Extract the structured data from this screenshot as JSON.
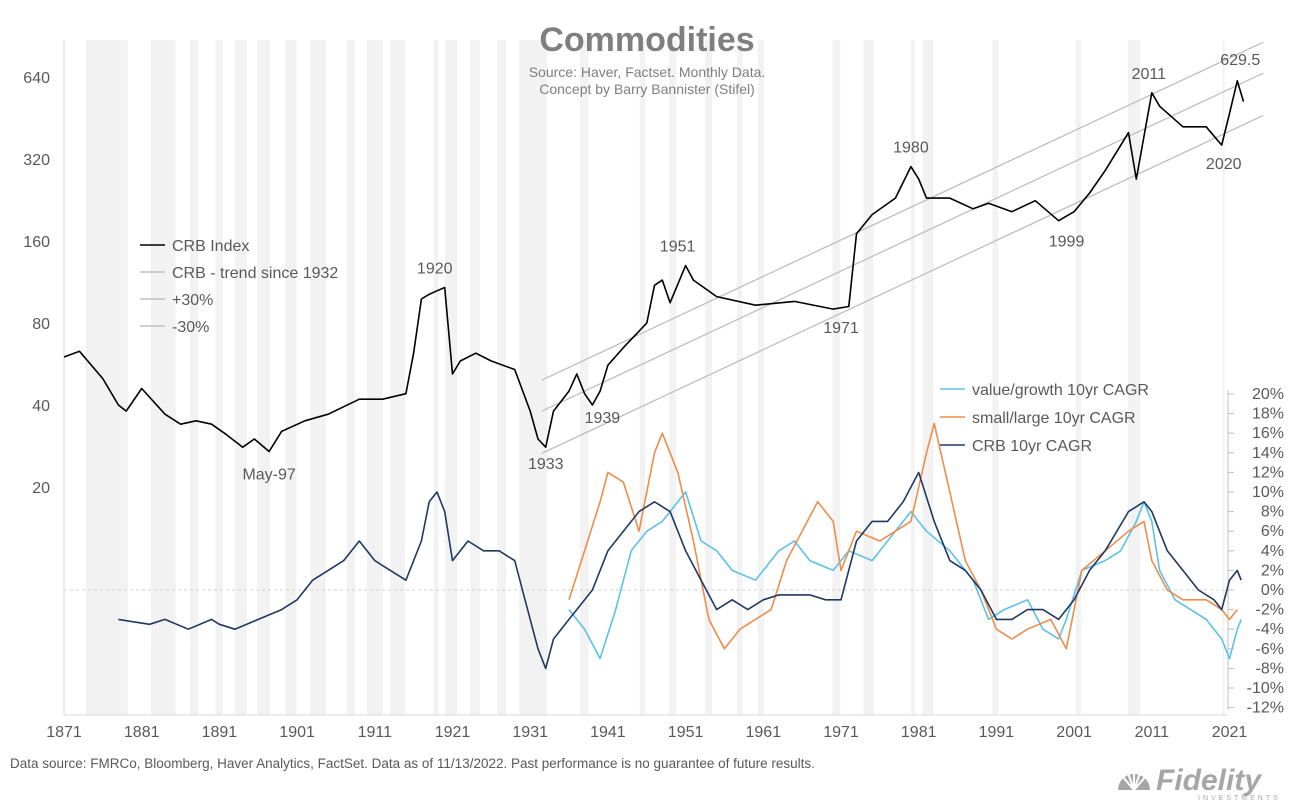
{
  "chart_data": {
    "type": "line",
    "title": "Commodities",
    "subtitle": [
      "Source: Haver, Factset.  Monthly Data.",
      "Concept by Barry Bannister (Stifel)"
    ],
    "x_ticks": [
      "1871",
      "1881",
      "1891",
      "1901",
      "1911",
      "1921",
      "1931",
      "1941",
      "1951",
      "1961",
      "1971",
      "1981",
      "1991",
      "2001",
      "2011",
      "2021"
    ],
    "left_axis": {
      "scale": "log2",
      "ticks": [
        "20",
        "40",
        "80",
        "160",
        "320",
        "640"
      ],
      "ylim": [
        10,
        800
      ]
    },
    "right_axis": {
      "ticks": [
        "20%",
        "18%",
        "16%",
        "14%",
        "12%",
        "10%",
        "8%",
        "6%",
        "4%",
        "2%",
        "0%",
        "-2%",
        "-4%",
        "-6%",
        "-8%",
        "-10%",
        "-12%"
      ],
      "ylim": [
        -12,
        20
      ]
    },
    "recession_shading": true,
    "recessions": [
      [
        1873.8,
        1879.2
      ],
      [
        1882.2,
        1885.4
      ],
      [
        1887.2,
        1888.3
      ],
      [
        1890.5,
        1891.4
      ],
      [
        1893.0,
        1894.5
      ],
      [
        1895.9,
        1897.5
      ],
      [
        1899.5,
        1900.9
      ],
      [
        1902.7,
        1904.7
      ],
      [
        1907.4,
        1908.5
      ],
      [
        1910.0,
        1912.0
      ],
      [
        1913.0,
        1914.9
      ],
      [
        1918.6,
        1919.2
      ],
      [
        1920.0,
        1921.6
      ],
      [
        1923.3,
        1924.5
      ],
      [
        1926.8,
        1927.9
      ],
      [
        1929.6,
        1933.2
      ],
      [
        1937.4,
        1938.5
      ],
      [
        1945.1,
        1945.8
      ],
      [
        1948.9,
        1949.8
      ],
      [
        1953.5,
        1954.4
      ],
      [
        1957.6,
        1958.3
      ],
      [
        1960.3,
        1961.1
      ],
      [
        1969.9,
        1970.9
      ],
      [
        1973.9,
        1975.2
      ],
      [
        1980.0,
        1980.5
      ],
      [
        1981.5,
        1982.9
      ],
      [
        1990.5,
        1991.2
      ],
      [
        2001.2,
        2001.9
      ],
      [
        2007.9,
        2009.5
      ],
      [
        2020.1,
        2020.3
      ]
    ],
    "series": [
      {
        "name": "CRB Index",
        "axis": "left",
        "color": "#000000",
        "points": [
          [
            1871,
            60
          ],
          [
            1873,
            63
          ],
          [
            1876,
            50
          ],
          [
            1878,
            40
          ],
          [
            1879,
            38
          ],
          [
            1881,
            46
          ],
          [
            1884,
            37
          ],
          [
            1886,
            34
          ],
          [
            1888,
            35
          ],
          [
            1890,
            34
          ],
          [
            1892,
            31
          ],
          [
            1894,
            28
          ],
          [
            1895.5,
            30
          ],
          [
            1897.4,
            27
          ],
          [
            1899,
            32
          ],
          [
            1902,
            35
          ],
          [
            1905,
            37
          ],
          [
            1909,
            42
          ],
          [
            1912,
            42
          ],
          [
            1915,
            44
          ],
          [
            1916,
            62
          ],
          [
            1917,
            98
          ],
          [
            1918,
            102
          ],
          [
            1919,
            105
          ],
          [
            1920,
            108
          ],
          [
            1921,
            52
          ],
          [
            1922,
            58
          ],
          [
            1924,
            62
          ],
          [
            1926,
            58
          ],
          [
            1929,
            54
          ],
          [
            1931,
            38
          ],
          [
            1932,
            30
          ],
          [
            1933,
            28
          ],
          [
            1934,
            38
          ],
          [
            1936,
            45
          ],
          [
            1937,
            52
          ],
          [
            1938,
            44
          ],
          [
            1939,
            40
          ],
          [
            1940,
            45
          ],
          [
            1941,
            56
          ],
          [
            1943,
            65
          ],
          [
            1946,
            80
          ],
          [
            1947,
            110
          ],
          [
            1948,
            115
          ],
          [
            1949,
            95
          ],
          [
            1951,
            130
          ],
          [
            1952,
            115
          ],
          [
            1955,
            100
          ],
          [
            1960,
            93
          ],
          [
            1965,
            96
          ],
          [
            1970,
            90
          ],
          [
            1972,
            92
          ],
          [
            1973,
            170
          ],
          [
            1975,
            200
          ],
          [
            1978,
            230
          ],
          [
            1980,
            300
          ],
          [
            1981,
            270
          ],
          [
            1982,
            230
          ],
          [
            1985,
            230
          ],
          [
            1988,
            210
          ],
          [
            1990,
            220
          ],
          [
            1993,
            205
          ],
          [
            1996,
            225
          ],
          [
            1999,
            190
          ],
          [
            2001,
            205
          ],
          [
            2003,
            240
          ],
          [
            2005,
            290
          ],
          [
            2008,
            400
          ],
          [
            2009,
            270
          ],
          [
            2011,
            560
          ],
          [
            2012,
            500
          ],
          [
            2015,
            420
          ],
          [
            2018,
            420
          ],
          [
            2020,
            360
          ],
          [
            2021,
            470
          ],
          [
            2022,
            620
          ],
          [
            2022.8,
            520
          ]
        ]
      },
      {
        "name": "CRB - trend since 1932",
        "axis": "left",
        "color": "#bfbfbf"
      },
      {
        "name": "+30%",
        "axis": "left",
        "color": "#bfbfbf"
      },
      {
        "name": "-30%",
        "axis": "left",
        "color": "#bfbfbf"
      },
      {
        "name": "value/growth 10yr CAGR",
        "axis": "right",
        "color": "#5bc2e7",
        "points": [
          [
            1936,
            -2
          ],
          [
            1938,
            -4
          ],
          [
            1940,
            -7
          ],
          [
            1942,
            -2
          ],
          [
            1944,
            4
          ],
          [
            1946,
            6
          ],
          [
            1948,
            7
          ],
          [
            1950,
            9
          ],
          [
            1951,
            10
          ],
          [
            1953,
            5
          ],
          [
            1955,
            4
          ],
          [
            1957,
            2
          ],
          [
            1960,
            1
          ],
          [
            1963,
            4
          ],
          [
            1965,
            5
          ],
          [
            1967,
            3
          ],
          [
            1970,
            2
          ],
          [
            1972,
            4
          ],
          [
            1975,
            3
          ],
          [
            1977,
            5
          ],
          [
            1980,
            8
          ],
          [
            1982,
            6
          ],
          [
            1985,
            4
          ],
          [
            1988,
            1
          ],
          [
            1990,
            -3
          ],
          [
            1992,
            -2
          ],
          [
            1995,
            -1
          ],
          [
            1997,
            -4
          ],
          [
            1999,
            -5
          ],
          [
            2000,
            -3
          ],
          [
            2002,
            2
          ],
          [
            2005,
            3
          ],
          [
            2007,
            4
          ],
          [
            2009,
            7
          ],
          [
            2010,
            9
          ],
          [
            2011,
            7
          ],
          [
            2012,
            2
          ],
          [
            2014,
            -1
          ],
          [
            2016,
            -2
          ],
          [
            2018,
            -3
          ],
          [
            2020,
            -5
          ],
          [
            2021,
            -7
          ],
          [
            2022,
            -4
          ],
          [
            2022.5,
            -3
          ]
        ]
      },
      {
        "name": "small/large 10yr CAGR",
        "axis": "right",
        "color": "#f08c4b",
        "points": [
          [
            1936,
            -1
          ],
          [
            1938,
            4
          ],
          [
            1940,
            9
          ],
          [
            1941,
            12
          ],
          [
            1943,
            11
          ],
          [
            1945,
            6
          ],
          [
            1947,
            14
          ],
          [
            1948,
            16
          ],
          [
            1950,
            12
          ],
          [
            1952,
            5
          ],
          [
            1954,
            -3
          ],
          [
            1956,
            -6
          ],
          [
            1958,
            -4
          ],
          [
            1960,
            -3
          ],
          [
            1962,
            -2
          ],
          [
            1964,
            3
          ],
          [
            1966,
            6
          ],
          [
            1968,
            9
          ],
          [
            1970,
            7
          ],
          [
            1971,
            2
          ],
          [
            1973,
            6
          ],
          [
            1976,
            5
          ],
          [
            1978,
            6
          ],
          [
            1980,
            7
          ],
          [
            1982,
            14
          ],
          [
            1983,
            17
          ],
          [
            1985,
            10
          ],
          [
            1987,
            3
          ],
          [
            1989,
            0
          ],
          [
            1991,
            -4
          ],
          [
            1993,
            -5
          ],
          [
            1995,
            -4
          ],
          [
            1998,
            -3
          ],
          [
            2000,
            -6
          ],
          [
            2002,
            2
          ],
          [
            2005,
            4
          ],
          [
            2008,
            6
          ],
          [
            2010,
            7
          ],
          [
            2011,
            3
          ],
          [
            2013,
            0
          ],
          [
            2015,
            -1
          ],
          [
            2018,
            -1
          ],
          [
            2020,
            -2
          ],
          [
            2021,
            -3
          ],
          [
            2022,
            -2
          ]
        ]
      },
      {
        "name": "CRB 10yr CAGR",
        "axis": "right",
        "color": "#1f3864",
        "points": [
          [
            1878,
            -3
          ],
          [
            1882,
            -3.5
          ],
          [
            1884,
            -3
          ],
          [
            1887,
            -4
          ],
          [
            1890,
            -3
          ],
          [
            1891,
            -3.5
          ],
          [
            1893,
            -4
          ],
          [
            1896,
            -3
          ],
          [
            1899,
            -2
          ],
          [
            1901,
            -1
          ],
          [
            1903,
            1
          ],
          [
            1905,
            2
          ],
          [
            1907,
            3
          ],
          [
            1909,
            5
          ],
          [
            1911,
            3
          ],
          [
            1913,
            2
          ],
          [
            1915,
            1
          ],
          [
            1917,
            5
          ],
          [
            1918,
            9
          ],
          [
            1919,
            10
          ],
          [
            1920,
            8
          ],
          [
            1921,
            3
          ],
          [
            1923,
            5
          ],
          [
            1925,
            4
          ],
          [
            1927,
            4
          ],
          [
            1929,
            3
          ],
          [
            1931,
            -3
          ],
          [
            1932,
            -6
          ],
          [
            1933,
            -8
          ],
          [
            1934,
            -5
          ],
          [
            1936,
            -3
          ],
          [
            1937,
            -2
          ],
          [
            1939,
            0
          ],
          [
            1941,
            4
          ],
          [
            1943,
            6
          ],
          [
            1945,
            8
          ],
          [
            1947,
            9
          ],
          [
            1949,
            8
          ],
          [
            1951,
            4
          ],
          [
            1953,
            1
          ],
          [
            1955,
            -2
          ],
          [
            1957,
            -1
          ],
          [
            1959,
            -2
          ],
          [
            1961,
            -1
          ],
          [
            1963,
            -0.5
          ],
          [
            1965,
            -0.5
          ],
          [
            1967,
            -0.5
          ],
          [
            1969,
            -1
          ],
          [
            1971,
            -1
          ],
          [
            1973,
            5
          ],
          [
            1975,
            7
          ],
          [
            1977,
            7
          ],
          [
            1979,
            9
          ],
          [
            1981,
            12
          ],
          [
            1983,
            7
          ],
          [
            1985,
            3
          ],
          [
            1987,
            2
          ],
          [
            1989,
            0
          ],
          [
            1991,
            -3
          ],
          [
            1993,
            -3
          ],
          [
            1995,
            -2
          ],
          [
            1997,
            -2
          ],
          [
            1999,
            -3
          ],
          [
            2001,
            -1
          ],
          [
            2003,
            2
          ],
          [
            2005,
            4
          ],
          [
            2008,
            8
          ],
          [
            2010,
            9
          ],
          [
            2011,
            8
          ],
          [
            2013,
            4
          ],
          [
            2015,
            2
          ],
          [
            2017,
            0
          ],
          [
            2019,
            -1
          ],
          [
            2020,
            -2
          ],
          [
            2021,
            1
          ],
          [
            2022,
            2
          ],
          [
            2022.5,
            1
          ]
        ]
      }
    ],
    "annotations": [
      {
        "label": "May-97",
        "year": 1897.4,
        "value": 27
      },
      {
        "label": "1920",
        "year": 1920,
        "value": 108
      },
      {
        "label": "1933",
        "year": 1933,
        "value": 28
      },
      {
        "label": "1939",
        "year": 1939,
        "value": 40
      },
      {
        "label": "1951",
        "year": 1951,
        "value": 130
      },
      {
        "label": "1971",
        "year": 1971,
        "value": 90
      },
      {
        "label": "1980",
        "year": 1980,
        "value": 300
      },
      {
        "label": "1999",
        "year": 1999,
        "value": 190
      },
      {
        "label": "2011",
        "year": 2011,
        "value": 560
      },
      {
        "label": "2020",
        "year": 2020,
        "value": 360
      },
      {
        "label": "629.5",
        "year": 2022,
        "value": 629.5
      }
    ],
    "trend": {
      "start_year": 1932,
      "start_value": 38,
      "end_year": 2022,
      "end_value": 560,
      "band_pct": 30
    }
  },
  "footer": "Data source: FMRCo, Bloomberg, Haver Analytics, FactSet. Data as of 11/13/2022. Past performance is no guarantee of future results.",
  "logo": {
    "name": "Fidelity",
    "subtext": "INVESTMENTS"
  }
}
